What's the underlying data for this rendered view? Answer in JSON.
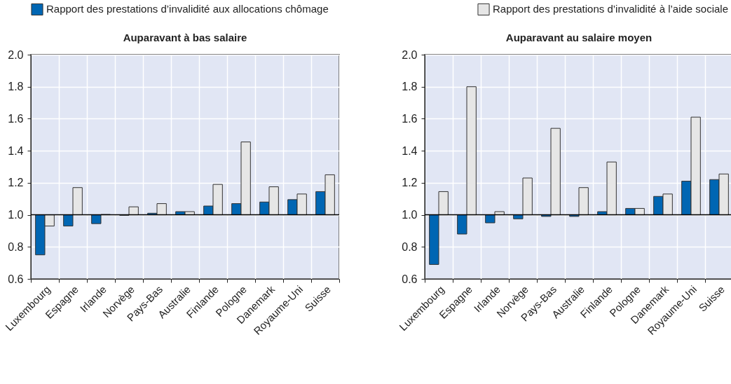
{
  "chart_data": [
    {
      "type": "bar",
      "title": "Auparavant à bas salaire",
      "categories": [
        "Luxembourg",
        "Espagne",
        "Irlande",
        "Norvège",
        "Pays-Bas",
        "Australie",
        "Finlande",
        "Pologne",
        "Danemark",
        "Royaume-Uni",
        "Suisse"
      ],
      "series": [
        {
          "name": "Rapport des prestations d’invalidité aux allocations chômage",
          "color": "#0066b3",
          "base": [
            1.0,
            1.0,
            1.0,
            1.0,
            1.0,
            1.0,
            1.0,
            1.0,
            1.0,
            1.0,
            1.0
          ],
          "values": [
            -0.25,
            -0.07,
            -0.055,
            -0.003,
            0.01,
            0.02,
            0.055,
            0.07,
            0.08,
            0.095,
            0.145
          ]
        },
        {
          "name": "Rapport des prestations d’invalidité à l’aide sociale",
          "color": "#e6e6e6",
          "base": [
            1.0,
            1.0,
            1.0,
            1.0,
            1.0,
            1.0,
            1.0,
            1.0,
            1.0,
            1.0,
            1.0
          ],
          "values": [
            -0.07,
            0.17,
            0.002,
            0.05,
            0.07,
            0.02,
            0.19,
            0.455,
            0.175,
            0.13,
            0.25
          ]
        }
      ],
      "ylim": [
        0.6,
        2.0
      ],
      "yticks": [
        {
          "value": 0.6,
          "label": "0.6"
        },
        {
          "value": 0.8,
          "label": "0.8"
        },
        {
          "value": 1.0,
          "label": "1.0"
        },
        {
          "value": 1.2,
          "label": "1.2"
        },
        {
          "value": 1.4,
          "label": "1.4"
        },
        {
          "value": 1.6,
          "label": "1.6"
        },
        {
          "value": 1.8,
          "label": "1.8"
        },
        {
          "value": 2.0,
          "label": "2.0"
        }
      ],
      "ref_lines": [
        {
          "axis": "y",
          "value": 1.0,
          "color": "#000000"
        }
      ],
      "grid": true,
      "legend": "top"
    },
    {
      "type": "bar",
      "title": "Auparavant au salaire moyen",
      "categories": [
        "Luxembourg",
        "Espagne",
        "Irlande",
        "Norvège",
        "Pays-Bas",
        "Australie",
        "Finlande",
        "Pologne",
        "Danemark",
        "Royaume-Uni",
        "Suisse"
      ],
      "series": [
        {
          "color": "#0066b3",
          "base": [
            1.0,
            1.0,
            1.0,
            1.0,
            1.0,
            1.0,
            1.0,
            1.0,
            1.0,
            1.0,
            1.0
          ],
          "values": [
            -0.31,
            -0.12,
            -0.05,
            -0.025,
            -0.01,
            -0.01,
            0.02,
            0.04,
            0.115,
            0.21,
            0.22
          ]
        },
        {
          "color": "#e6e6e6",
          "base": [
            1.0,
            1.0,
            1.0,
            1.0,
            1.0,
            1.0,
            1.0,
            1.0,
            1.0,
            1.0,
            1.0
          ],
          "values": [
            0.145,
            0.8,
            0.02,
            0.23,
            0.54,
            0.17,
            0.33,
            0.04,
            0.13,
            0.61,
            0.255
          ]
        }
      ],
      "ylim": [
        0.6,
        2.0
      ],
      "yticks": [
        {
          "value": 0.6,
          "label": "0.6"
        },
        {
          "value": 0.8,
          "label": "0.8"
        },
        {
          "value": 1.0,
          "label": "1.0"
        },
        {
          "value": 1.2,
          "label": "1.2"
        },
        {
          "value": 1.4,
          "label": "1.4"
        },
        {
          "value": 1.6,
          "label": "1.6"
        },
        {
          "value": 1.8,
          "label": "1.8"
        },
        {
          "value": 2.0,
          "label": "2.0"
        }
      ],
      "ref_lines": [
        {
          "axis": "y",
          "value": 1.0,
          "color": "#000000"
        }
      ],
      "grid": true
    }
  ]
}
